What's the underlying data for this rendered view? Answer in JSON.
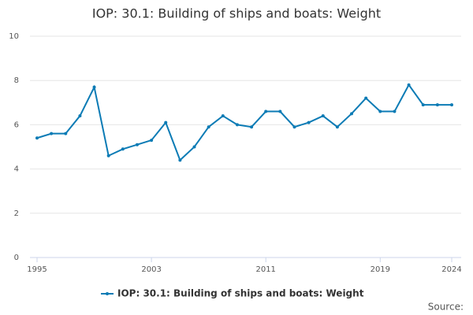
{
  "chart_data": {
    "type": "line",
    "title": "IOP: 30.1: Building of ships and boats: Weight",
    "x": [
      1995,
      1996,
      1997,
      1998,
      1999,
      2000,
      2001,
      2002,
      2003,
      2004,
      2005,
      2006,
      2007,
      2008,
      2009,
      2010,
      2011,
      2012,
      2013,
      2014,
      2015,
      2016,
      2017,
      2018,
      2019,
      2020,
      2021,
      2022,
      2023,
      2024
    ],
    "series": [
      {
        "name": "IOP: 30.1: Building of ships and boats: Weight",
        "color": "#0b7bb5",
        "values": [
          5.4,
          5.6,
          5.6,
          6.4,
          7.7,
          4.6,
          4.9,
          5.1,
          5.3,
          6.1,
          4.4,
          5.0,
          5.9,
          6.4,
          6.0,
          5.9,
          6.6,
          6.6,
          5.9,
          6.1,
          6.4,
          5.9,
          6.5,
          7.2,
          6.6,
          6.6,
          7.8,
          6.9,
          6.9,
          6.9
        ]
      }
    ],
    "xlim": [
      1995,
      2024
    ],
    "xticks": [
      1995,
      2003,
      2011,
      2019,
      2024
    ],
    "ylim": [
      0,
      10
    ],
    "yticks": [
      0,
      2,
      4,
      6,
      8,
      10
    ],
    "grid": true,
    "legend": "bottom",
    "source": "Source:"
  }
}
